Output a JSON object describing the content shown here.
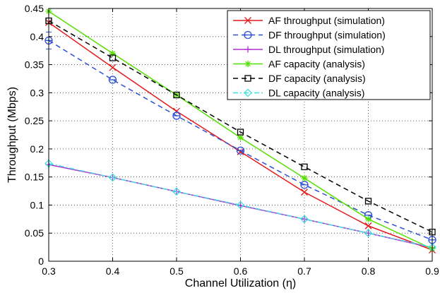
{
  "chart_data": {
    "type": "line",
    "title": "",
    "xlabel": "Channel Utilization (η)",
    "ylabel": "Throughput (Mbps)",
    "xlim": [
      0.3,
      0.9
    ],
    "ylim": [
      0,
      0.45
    ],
    "xticks": [
      "0.3",
      "0.4",
      "0.5",
      "0.6",
      "0.7",
      "0.8",
      "0.9"
    ],
    "yticks": [
      "0",
      "0.05",
      "0.1",
      "0.15",
      "0.2",
      "0.25",
      "0.3",
      "0.35",
      "0.4",
      "0.45"
    ],
    "grid": true,
    "legend_position": "top-right",
    "x": [
      0.3,
      0.4,
      0.5,
      0.6,
      0.7,
      0.8,
      0.9
    ],
    "series": [
      {
        "name": "AF throughput (simulation)",
        "color": "#e41a1c",
        "dash": "solid",
        "marker": "x",
        "values": [
          0.425,
          0.345,
          0.267,
          0.195,
          0.123,
          0.063,
          0.02
        ]
      },
      {
        "name": "DF throughput (simulation)",
        "color": "#2b4fd8",
        "dash": "dashed",
        "marker": "circle-bar",
        "values": [
          0.393,
          0.323,
          0.259,
          0.197,
          0.136,
          0.082,
          0.038
        ]
      },
      {
        "name": "DL throughput (simulation)",
        "color": "#b030d0",
        "dash": "solid",
        "marker": "plus",
        "values": [
          0.172,
          0.149,
          0.124,
          0.099,
          0.075,
          0.05,
          0.024
        ]
      },
      {
        "name": "AF capacity (analysis)",
        "color": "#55e000",
        "dash": "solid",
        "marker": "asterisk",
        "values": [
          0.445,
          0.37,
          0.296,
          0.22,
          0.148,
          0.075,
          0.022
        ]
      },
      {
        "name": "DF capacity (analysis)",
        "color": "#000000",
        "dash": "dashed",
        "marker": "square",
        "values": [
          0.428,
          0.362,
          0.296,
          0.23,
          0.168,
          0.107,
          0.052
        ]
      },
      {
        "name": "DL capacity (analysis)",
        "color": "#40e0e0",
        "dash": "dashdot",
        "marker": "diamond",
        "values": [
          0.174,
          0.149,
          0.124,
          0.1,
          0.075,
          0.05,
          0.025
        ]
      }
    ]
  }
}
